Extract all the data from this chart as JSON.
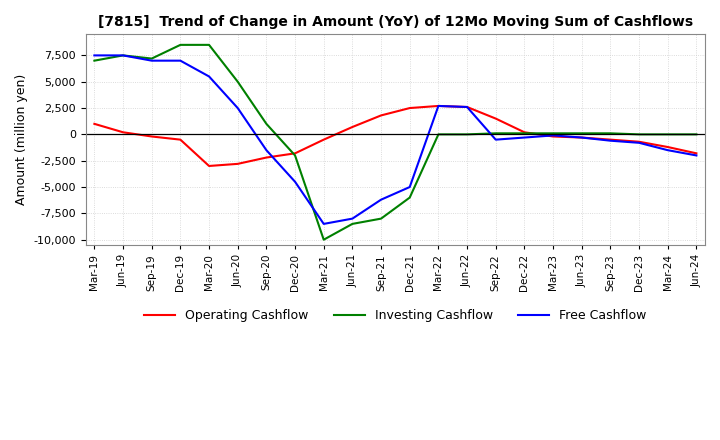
{
  "title": "[7815]  Trend of Change in Amount (YoY) of 12Mo Moving Sum of Cashflows",
  "ylabel": "Amount (million yen)",
  "ylim": [
    -10500,
    9500
  ],
  "yticks": [
    -10000,
    -7500,
    -5000,
    -2500,
    0,
    2500,
    5000,
    7500
  ],
  "x_labels": [
    "Mar-19",
    "Jun-19",
    "Sep-19",
    "Dec-19",
    "Mar-20",
    "Jun-20",
    "Sep-20",
    "Dec-20",
    "Mar-21",
    "Jun-21",
    "Sep-21",
    "Dec-21",
    "Mar-22",
    "Jun-22",
    "Sep-22",
    "Dec-22",
    "Mar-23",
    "Jun-23",
    "Sep-23",
    "Dec-23",
    "Mar-24",
    "Jun-24"
  ],
  "operating_cashflow": [
    1000,
    200,
    -200,
    -500,
    -3000,
    -2800,
    -2200,
    -1800,
    -500,
    700,
    1800,
    2500,
    2700,
    2600,
    1500,
    200,
    -200,
    -300,
    -500,
    -700,
    -1200,
    -1800
  ],
  "investing_cashflow": [
    7000,
    7500,
    7200,
    8500,
    8500,
    5000,
    1000,
    -2000,
    -10000,
    -8500,
    -8000,
    -6000,
    0,
    0,
    100,
    100,
    100,
    100,
    100,
    0,
    0,
    0
  ],
  "free_cashflow": [
    7500,
    7500,
    7000,
    7000,
    5500,
    2500,
    -1500,
    -4500,
    -8500,
    -8000,
    -6200,
    -5000,
    2700,
    2600,
    -500,
    -300,
    -100,
    -300,
    -600,
    -800,
    -1500,
    -2000
  ],
  "op_color": "#ff0000",
  "inv_color": "#008000",
  "free_color": "#0000ff",
  "bg_color": "#ffffff",
  "grid_color": "#d0d0d0"
}
